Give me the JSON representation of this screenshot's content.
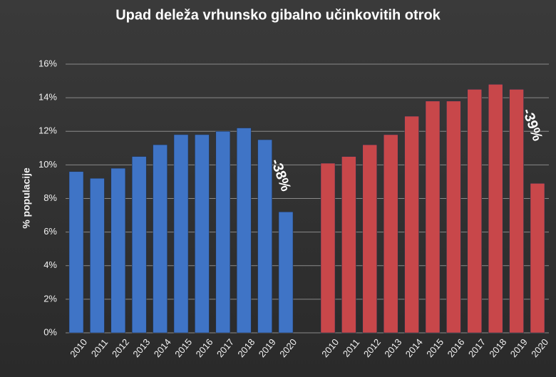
{
  "chart_data": {
    "type": "bar",
    "title": "Upad deleža vrhunsko gibalno učinkovitih otrok",
    "y_label": "% populacije",
    "categories": [
      "2010",
      "2011",
      "2012",
      "2013",
      "2014",
      "2015",
      "2016",
      "2017",
      "2018",
      "2019",
      "2020"
    ],
    "series": [
      {
        "color": "#3f74c6",
        "values": [
          9.6,
          9.2,
          9.8,
          10.5,
          11.2,
          11.8,
          11.8,
          12.0,
          12.2,
          11.5,
          7.2
        ]
      },
      {
        "color": "#c8474a",
        "values": [
          10.1,
          10.5,
          11.2,
          11.8,
          12.9,
          13.8,
          13.8,
          14.5,
          14.8,
          14.5,
          8.9
        ]
      }
    ],
    "annotations": [
      "-38%",
      "-39%"
    ],
    "ylim": [
      0,
      16
    ],
    "yticks": [
      {
        "value": 0,
        "label": "0%"
      },
      {
        "value": 2,
        "label": "2%"
      },
      {
        "value": 4,
        "label": "4%"
      },
      {
        "value": 6,
        "label": "6%"
      },
      {
        "value": 8,
        "label": "8%"
      },
      {
        "value": 10,
        "label": "10%"
      },
      {
        "value": 12,
        "label": "12%"
      },
      {
        "value": 14,
        "label": "14%"
      },
      {
        "value": 16,
        "label": "16%"
      }
    ],
    "grid": true
  }
}
